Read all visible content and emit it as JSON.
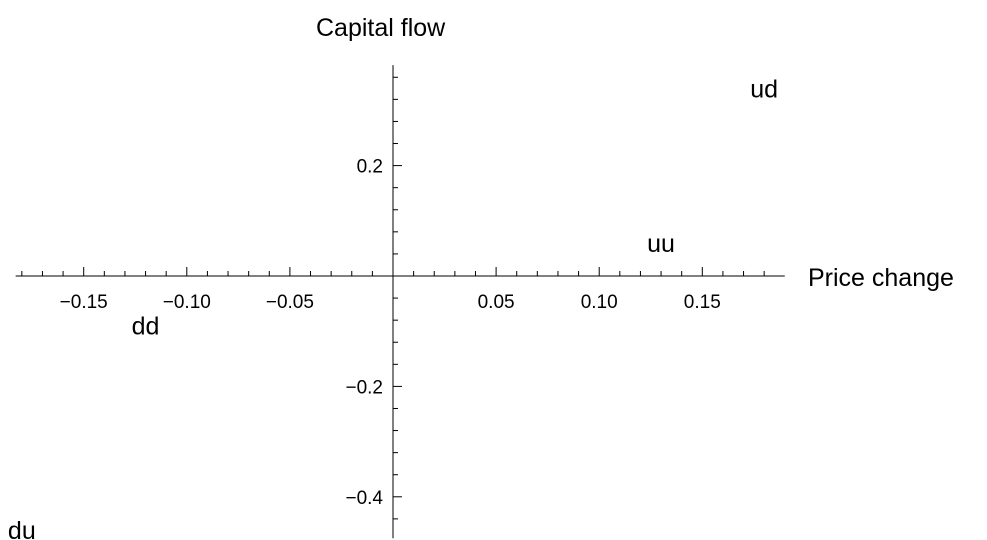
{
  "chart_data": {
    "type": "scatter",
    "xlabel": "Price change",
    "ylabel": "Capital flow",
    "xlim": [
      -0.183,
      0.19
    ],
    "ylim": [
      -0.475,
      0.382
    ],
    "x_ticks": [
      {
        "value": -0.15,
        "label": "−0.15"
      },
      {
        "value": -0.1,
        "label": "−0.10"
      },
      {
        "value": -0.05,
        "label": "−0.05"
      },
      {
        "value": 0.05,
        "label": "0.05"
      },
      {
        "value": 0.1,
        "label": "0.10"
      },
      {
        "value": 0.15,
        "label": "0.15"
      }
    ],
    "y_ticks": [
      {
        "value": 0.2,
        "label": "0.2"
      },
      {
        "value": -0.2,
        "label": "−0.2"
      },
      {
        "value": -0.4,
        "label": "−0.4"
      }
    ],
    "points": [
      {
        "label": "ud",
        "x": 0.18,
        "y": 0.34
      },
      {
        "label": "uu",
        "x": 0.13,
        "y": 0.06
      },
      {
        "label": "dd",
        "x": -0.12,
        "y": -0.09
      },
      {
        "label": "du",
        "x": -0.18,
        "y": -0.46
      }
    ],
    "grid": false,
    "legend": "none"
  }
}
